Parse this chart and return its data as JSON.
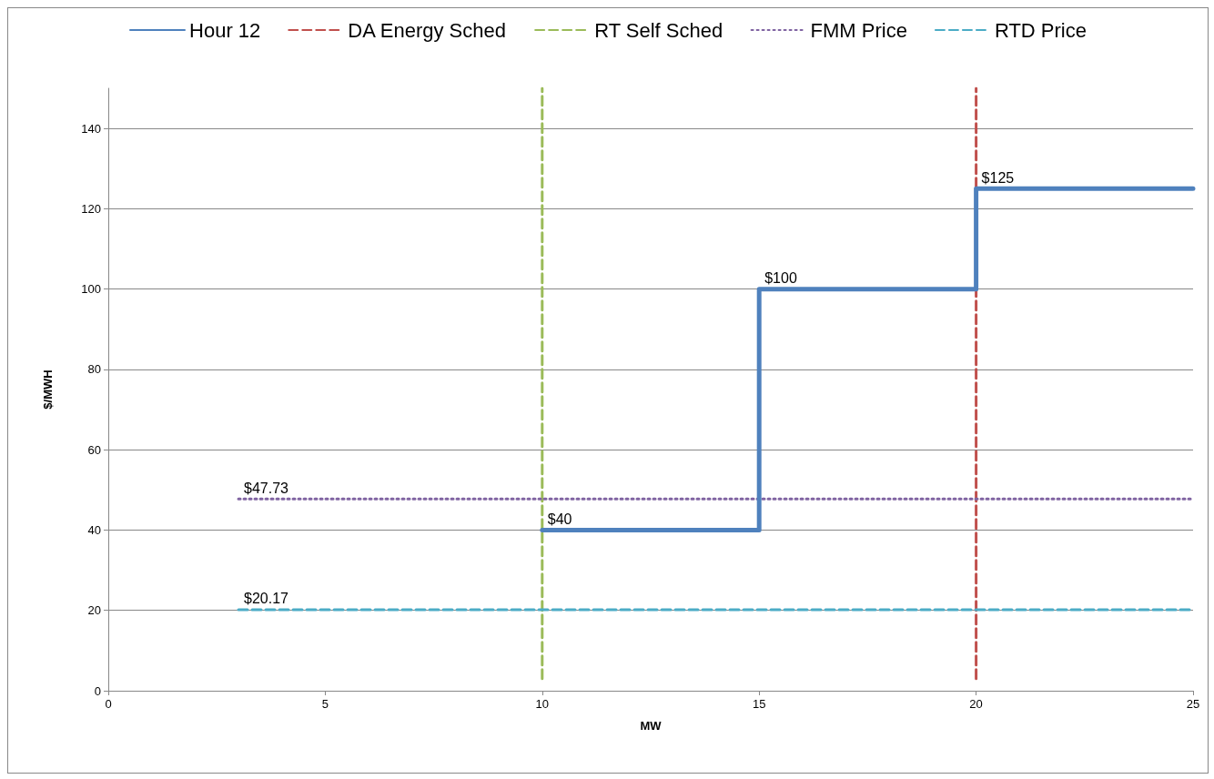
{
  "chart_data": {
    "type": "line",
    "xlabel": "MW",
    "ylabel": "$/MWH",
    "xlim": [
      0,
      25
    ],
    "xticks": [
      0,
      5,
      10,
      15,
      20,
      25
    ],
    "ylim": [
      0,
      150
    ],
    "yticks": [
      0,
      20,
      40,
      60,
      80,
      100,
      120,
      140
    ],
    "grid": "y",
    "legend": "top",
    "marker": "none",
    "series": [
      {
        "name": "Hour 12",
        "type": "step",
        "color": "#4f81bd",
        "line_style": "solid",
        "x": [
          10,
          15,
          20,
          25
        ],
        "values": [
          40,
          100,
          125,
          125
        ],
        "value_labels": [
          "$40",
          "$100",
          "$125",
          null
        ]
      },
      {
        "name": "DA Energy Sched",
        "color": "#c0504d",
        "line_style": "dashed",
        "x": [
          20,
          20
        ],
        "values": [
          3,
          150
        ]
      },
      {
        "name": "RT Self Sched",
        "color": "#9bbb59",
        "line_style": "dashed",
        "x": [
          10,
          10
        ],
        "values": [
          3,
          150
        ]
      },
      {
        "name": "FMM Price",
        "color": "#8064a2",
        "line_style": "dotted",
        "x": [
          3,
          25
        ],
        "values": [
          47.73,
          47.73
        ],
        "value_labels": [
          "$47.73",
          null
        ]
      },
      {
        "name": "RTD Price",
        "color": "#4bacc6",
        "line_style": "dashed",
        "x": [
          3,
          25
        ],
        "values": [
          20.17,
          20.17
        ],
        "value_labels": [
          "$20.17",
          null
        ]
      }
    ]
  }
}
